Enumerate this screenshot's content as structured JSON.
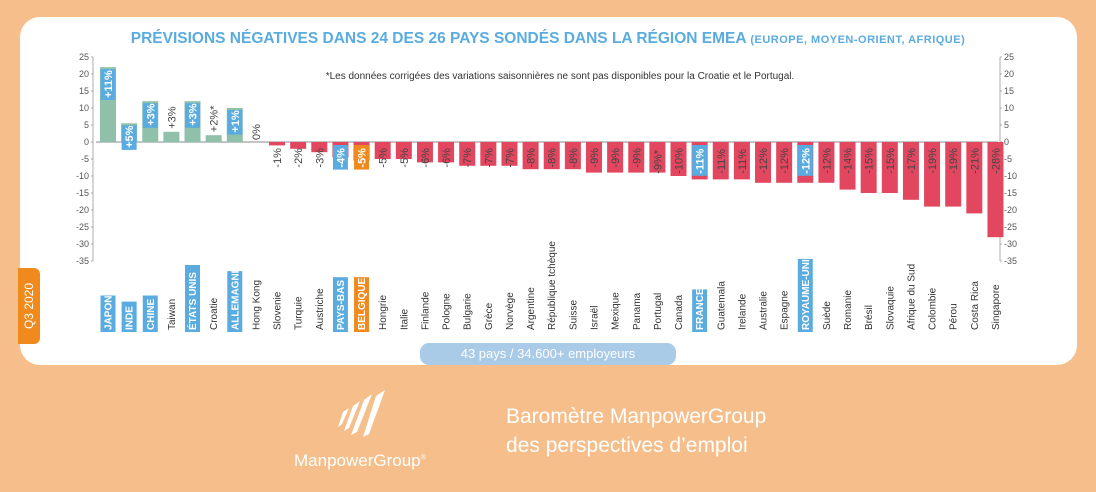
{
  "title": {
    "main": "PRÉVISIONS NÉGATIVES DANS 24 DES 26 PAYS SONDÉS DANS LA RÉGION EMEA",
    "suffix": "(EUROPE, MOYEN-ORIENT, AFRIQUE)"
  },
  "subtitle": "*Les données corrigées des variations saisonnières ne sont pas disponibles pour la Croatie et le Portugal.",
  "quarter_badge": "Q3 2020",
  "footer_pill": "43 pays / 34.600+ employeurs",
  "brand": {
    "name": "ManpowerGroup",
    "tm": "®"
  },
  "tagline": {
    "line1": "Baromètre ManpowerGroup",
    "line2": "des perspectives d’emploi"
  },
  "colors": {
    "page_background": "#f5be8a",
    "card": "#ffffff",
    "positive_bar": "#8fc0a9",
    "negative_bar": "#e2475f",
    "highlight_blue": "#5aace0",
    "highlight_orange": "#f08a1c",
    "title": "#5aace0"
  },
  "chart_data": {
    "type": "bar",
    "ylim": [
      -35,
      25
    ],
    "y_ticks": [
      "25",
      "20",
      "15",
      "10",
      "5",
      "0",
      "-5",
      "-10",
      "-15",
      "-20",
      "-25",
      "-30",
      "-35"
    ],
    "tick_values": [
      25,
      20,
      15,
      10,
      5,
      0,
      -5,
      -10,
      -15,
      -20,
      -25,
      -30,
      -35
    ],
    "categories": [
      "JAPON",
      "INDE",
      "CHINE",
      "Taiwan",
      "ÉTATS UNIS",
      "Croatie",
      "ALLEMAGNE",
      "Hong Kong",
      "Slovenie",
      "Turquie",
      "Austriche",
      "PAYS-BAS",
      "BELGIQUE",
      "Hongrie",
      "Italie",
      "Finlande",
      "Pologne",
      "Bulgarie",
      "Grèce",
      "Norvège",
      "Argentine",
      "République tchèque",
      "Suisse",
      "Israël",
      "Mexique",
      "Panama",
      "Portugal",
      "Canada",
      "FRANCE",
      "Guatemala",
      "Irelande",
      "Australie",
      "Espagne",
      "ROYAUME-UNI",
      "Suède",
      "Romanie",
      "Brésil",
      "Slovaquie",
      "Afrique du Sud",
      "Colombie",
      "Pérou",
      "Costa Rica",
      "Singapore"
    ],
    "values": [
      11,
      5,
      3,
      3,
      3,
      2,
      1,
      0,
      -1,
      -2,
      -3,
      -4,
      -5,
      -5,
      -5,
      -6,
      -6,
      -7,
      -7,
      -7,
      -8,
      -8,
      -8,
      -9,
      -9,
      -9,
      -9,
      -10,
      -11,
      -11,
      -11,
      -12,
      -12,
      -12,
      -12,
      -14,
      -15,
      -15,
      -17,
      -19,
      -19,
      -21,
      -28
    ],
    "bar_heights": [
      22,
      5.5,
      12,
      3,
      12,
      2,
      10,
      0,
      -1,
      -2,
      -3,
      -4.5,
      -5.5,
      -5,
      -5,
      -6,
      -6,
      -7,
      -7,
      -7,
      -8,
      -8,
      -8,
      -9,
      -9,
      -9,
      -9,
      -10,
      -11,
      -11,
      -11,
      -12,
      -12,
      -12,
      -12,
      -14,
      -15,
      -15,
      -17,
      -19,
      -19,
      -21,
      -28
    ],
    "value_labels": [
      "+11%",
      "+5%",
      "+3%",
      "+3%",
      "+3%",
      "+2%*",
      "+1%",
      "0%",
      "-1%",
      "-2%",
      "-3%",
      "-4%",
      "-5%",
      "-5%",
      "-5%",
      "-6%",
      "-6%",
      "-7%",
      "-7%",
      "-7%",
      "-8%",
      "-8%",
      "-8%",
      "-9%",
      "-9%",
      "-9%",
      "-9%*",
      "-10%",
      "-11%",
      "-11%",
      "-11%",
      "-12%",
      "-12%",
      "-12%",
      "-12%",
      "-14%",
      "-15%",
      "-15%",
      "-17%",
      "-19%",
      "-19%",
      "-21%",
      "-28%"
    ],
    "highlight": [
      "blue",
      "blue",
      "blue",
      "none",
      "blue",
      "none",
      "blue",
      "none",
      "none",
      "none",
      "none",
      "blue",
      "orange",
      "none",
      "none",
      "none",
      "none",
      "none",
      "none",
      "none",
      "none",
      "none",
      "none",
      "none",
      "none",
      "none",
      "none",
      "none",
      "blue",
      "none",
      "none",
      "none",
      "none",
      "blue",
      "none",
      "none",
      "none",
      "none",
      "none",
      "none",
      "none",
      "none",
      "none"
    ],
    "grid": false,
    "legend": "none"
  }
}
